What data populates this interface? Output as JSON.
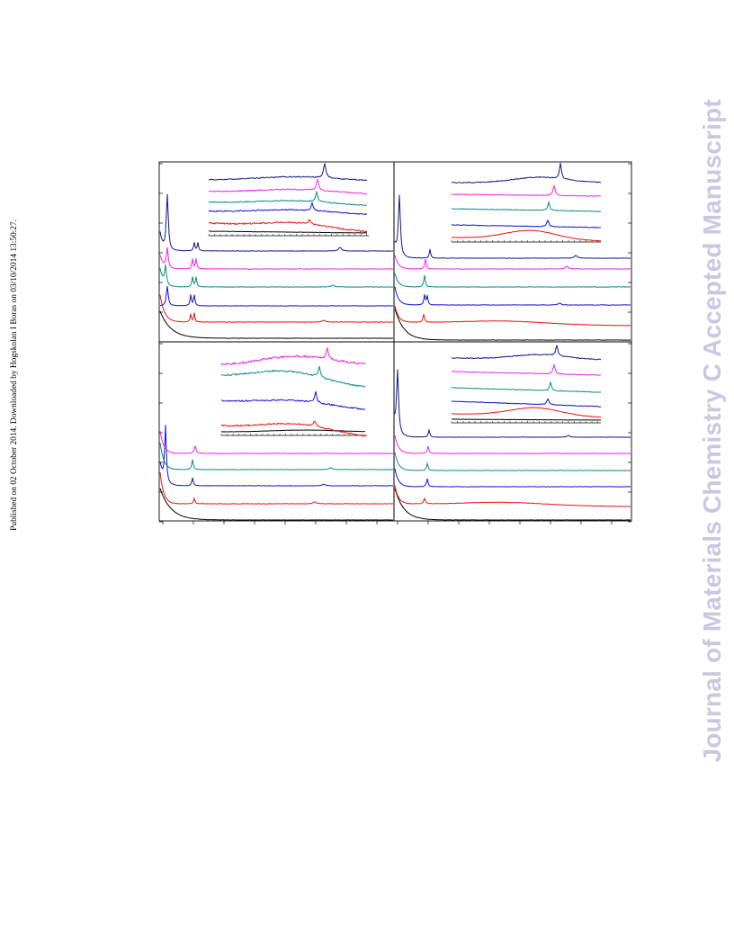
{
  "side_note": "Published on 02 October 2014. Downloaded by Hogskolan I Boras on 03/10/2014 13:50:27.",
  "watermark": "Journal of Materials Chemistry C Accepted Manuscript",
  "colors": {
    "red": "#ee1111",
    "blue": "#1010d8",
    "teal": "#0a8a80",
    "magenta": "#ee22ee",
    "navy": "#16168a",
    "black": "#000000"
  },
  "chart_data": {
    "type": "line",
    "title": "",
    "xlabel": "",
    "ylabel": "",
    "grid": false,
    "legend": "none",
    "panels": [
      {
        "name": "top-left",
        "series": [
          "black",
          "red",
          "blue",
          "teal",
          "magenta",
          "navy"
        ],
        "inset": true
      },
      {
        "name": "top-right",
        "series": [
          "black",
          "red",
          "blue",
          "teal",
          "magenta",
          "navy"
        ],
        "inset": true
      },
      {
        "name": "bottom-left",
        "series": [
          "black",
          "red",
          "blue",
          "teal",
          "magenta"
        ],
        "inset": true
      },
      {
        "name": "bottom-right",
        "series": [
          "black",
          "red",
          "blue",
          "teal",
          "magenta",
          "navy"
        ],
        "inset": true
      }
    ]
  }
}
